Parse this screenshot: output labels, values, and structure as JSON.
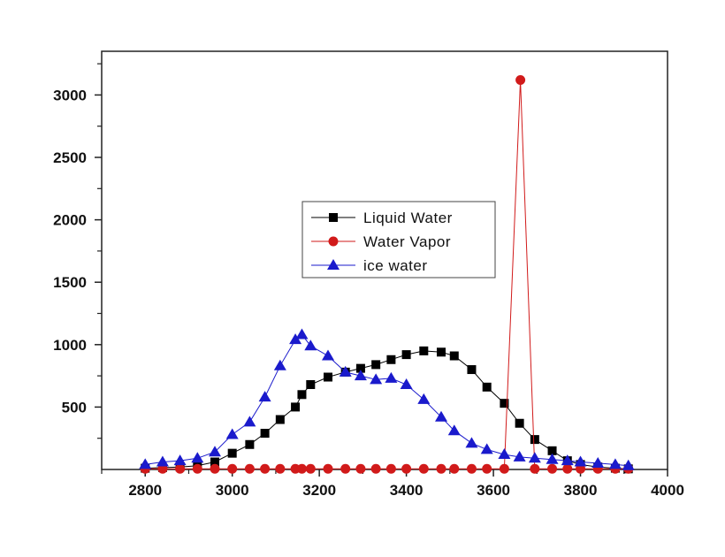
{
  "chart_data": {
    "type": "line",
    "title": "",
    "xlabel": "",
    "ylabel": "",
    "xlim": [
      2700,
      4000
    ],
    "ylim": [
      0,
      3350
    ],
    "x_ticks": [
      2800,
      3000,
      3200,
      3400,
      3600,
      3800,
      4000
    ],
    "y_ticks": [
      500,
      1000,
      1500,
      2000,
      2500,
      3000
    ],
    "grid": false,
    "legend_position": "center",
    "series": [
      {
        "name": "Liquid Water",
        "color": "#000000",
        "marker": "square",
        "points": [
          [
            2800,
            10
          ],
          [
            2840,
            15
          ],
          [
            2880,
            20
          ],
          [
            2920,
            30
          ],
          [
            2960,
            60
          ],
          [
            3000,
            130
          ],
          [
            3040,
            200
          ],
          [
            3075,
            290
          ],
          [
            3110,
            400
          ],
          [
            3145,
            500
          ],
          [
            3160,
            600
          ],
          [
            3180,
            680
          ],
          [
            3220,
            740
          ],
          [
            3260,
            780
          ],
          [
            3295,
            810
          ],
          [
            3330,
            840
          ],
          [
            3365,
            880
          ],
          [
            3400,
            920
          ],
          [
            3440,
            950
          ],
          [
            3480,
            940
          ],
          [
            3510,
            910
          ],
          [
            3550,
            800
          ],
          [
            3585,
            660
          ],
          [
            3625,
            530
          ],
          [
            3660,
            370
          ],
          [
            3695,
            240
          ],
          [
            3735,
            150
          ],
          [
            3770,
            70
          ],
          [
            3800,
            40
          ],
          [
            3840,
            20
          ],
          [
            3880,
            10
          ],
          [
            3910,
            5
          ]
        ]
      },
      {
        "name": "Water Vapor",
        "color": "#d11a1a",
        "marker": "circle",
        "points": [
          [
            2800,
            5
          ],
          [
            2840,
            5
          ],
          [
            2880,
            5
          ],
          [
            2920,
            5
          ],
          [
            2960,
            5
          ],
          [
            3000,
            5
          ],
          [
            3040,
            5
          ],
          [
            3075,
            5
          ],
          [
            3110,
            5
          ],
          [
            3145,
            5
          ],
          [
            3160,
            5
          ],
          [
            3180,
            5
          ],
          [
            3220,
            5
          ],
          [
            3260,
            5
          ],
          [
            3295,
            5
          ],
          [
            3330,
            5
          ],
          [
            3365,
            5
          ],
          [
            3400,
            5
          ],
          [
            3440,
            5
          ],
          [
            3480,
            5
          ],
          [
            3510,
            5
          ],
          [
            3550,
            5
          ],
          [
            3585,
            5
          ],
          [
            3625,
            5
          ],
          [
            3662,
            3120
          ],
          [
            3695,
            5
          ],
          [
            3735,
            5
          ],
          [
            3770,
            5
          ],
          [
            3800,
            5
          ],
          [
            3840,
            5
          ],
          [
            3880,
            5
          ],
          [
            3910,
            5
          ]
        ]
      },
      {
        "name": "ice water",
        "color": "#1a1acc",
        "marker": "triangle",
        "points": [
          [
            2800,
            40
          ],
          [
            2840,
            60
          ],
          [
            2880,
            70
          ],
          [
            2920,
            90
          ],
          [
            2960,
            140
          ],
          [
            3000,
            280
          ],
          [
            3040,
            380
          ],
          [
            3075,
            580
          ],
          [
            3110,
            830
          ],
          [
            3145,
            1040
          ],
          [
            3160,
            1080
          ],
          [
            3180,
            990
          ],
          [
            3220,
            910
          ],
          [
            3260,
            780
          ],
          [
            3295,
            750
          ],
          [
            3330,
            720
          ],
          [
            3365,
            730
          ],
          [
            3400,
            680
          ],
          [
            3440,
            560
          ],
          [
            3480,
            420
          ],
          [
            3510,
            310
          ],
          [
            3550,
            210
          ],
          [
            3585,
            160
          ],
          [
            3625,
            120
          ],
          [
            3660,
            100
          ],
          [
            3695,
            90
          ],
          [
            3735,
            80
          ],
          [
            3770,
            70
          ],
          [
            3800,
            60
          ],
          [
            3840,
            50
          ],
          [
            3880,
            40
          ],
          [
            3910,
            30
          ]
        ]
      }
    ]
  }
}
